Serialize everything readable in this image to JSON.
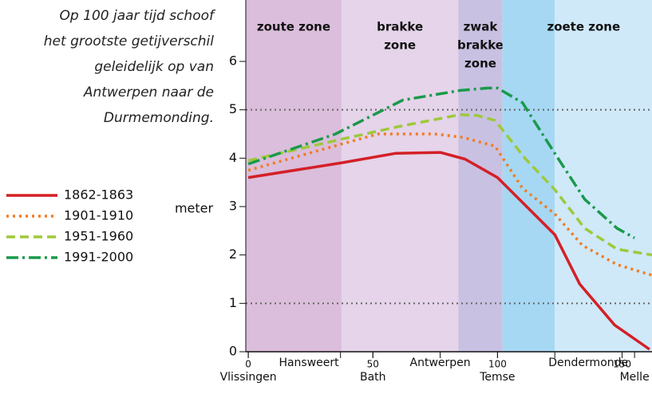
{
  "chart_data": {
    "type": "line",
    "annotation": [
      "Op 100 jaar tijd schoof",
      "het grootste getijverschil",
      "geleidelijk op van",
      "Antwerpen naar de",
      "Durmemonding."
    ],
    "ylabel": "meter",
    "xlim": [
      -1,
      162
    ],
    "ylim": [
      0,
      6.05
    ],
    "yticks": [
      0,
      1,
      2,
      3,
      4,
      5,
      6
    ],
    "gridlines": [
      1,
      5
    ],
    "xticks": [
      0,
      50,
      100,
      150
    ],
    "locations": [
      {
        "name": "Vlissingen",
        "x": 0
      },
      {
        "name": "Hansweert",
        "x": 37
      },
      {
        "name": "Bath",
        "x": 50
      },
      {
        "name": "Antwerpen",
        "x": 77
      },
      {
        "name": "Temse",
        "x": 100
      },
      {
        "name": "Dendermonde",
        "x": 123
      },
      {
        "name": "Melle",
        "x": 155
      }
    ],
    "zones": [
      {
        "label": [
          "zoute zone"
        ],
        "start": -1,
        "end": 37.4,
        "color": "#dbbedb"
      },
      {
        "label": [
          "brakke",
          "zone"
        ],
        "start": 37.4,
        "end": 84.3,
        "color": "#e5d4ea"
      },
      {
        "label": [
          "zwak",
          "brakke",
          "zone"
        ],
        "start": 84.3,
        "end": 102,
        "color": "#c9c1e2"
      },
      {
        "label": [
          "zoete zone"
        ],
        "start": 102,
        "end": 162,
        "split": 123,
        "colors": [
          "#a6d8f3",
          "#cfe9f9"
        ]
      }
    ],
    "series": [
      {
        "name": "1862-1863",
        "color": "#d42027",
        "dash": "none",
        "x": [
          0,
          37,
          59,
          77,
          87,
          100,
          123,
          133,
          147,
          161
        ],
        "values": [
          3.6,
          3.9,
          4.1,
          4.12,
          3.98,
          3.6,
          2.42,
          1.4,
          0.55,
          0.05
        ]
      },
      {
        "name": "1901-1910",
        "color": "#f07c22",
        "dash": "3,5",
        "x": [
          0,
          38,
          52,
          75,
          86,
          99,
          110,
          123,
          134,
          148,
          162
        ],
        "values": [
          3.75,
          4.3,
          4.5,
          4.5,
          4.43,
          4.25,
          3.38,
          2.85,
          2.2,
          1.8,
          1.58
        ]
      },
      {
        "name": "1951-1960",
        "color": "#9ec93b",
        "dash": "11,6",
        "x": [
          0,
          38,
          60,
          85,
          92,
          99,
          111,
          123,
          135,
          148,
          162
        ],
        "values": [
          3.95,
          4.4,
          4.65,
          4.9,
          4.88,
          4.78,
          4.0,
          3.35,
          2.55,
          2.12,
          2.0
        ]
      },
      {
        "name": "1991-2000",
        "color": "#1a9a4a",
        "dash": "15,5,3,5",
        "x": [
          0,
          35,
          62,
          85,
          96,
          100,
          110,
          123,
          135,
          148,
          155
        ],
        "values": [
          3.88,
          4.5,
          5.2,
          5.4,
          5.45,
          5.45,
          5.15,
          4.1,
          3.15,
          2.55,
          2.35
        ]
      }
    ]
  }
}
